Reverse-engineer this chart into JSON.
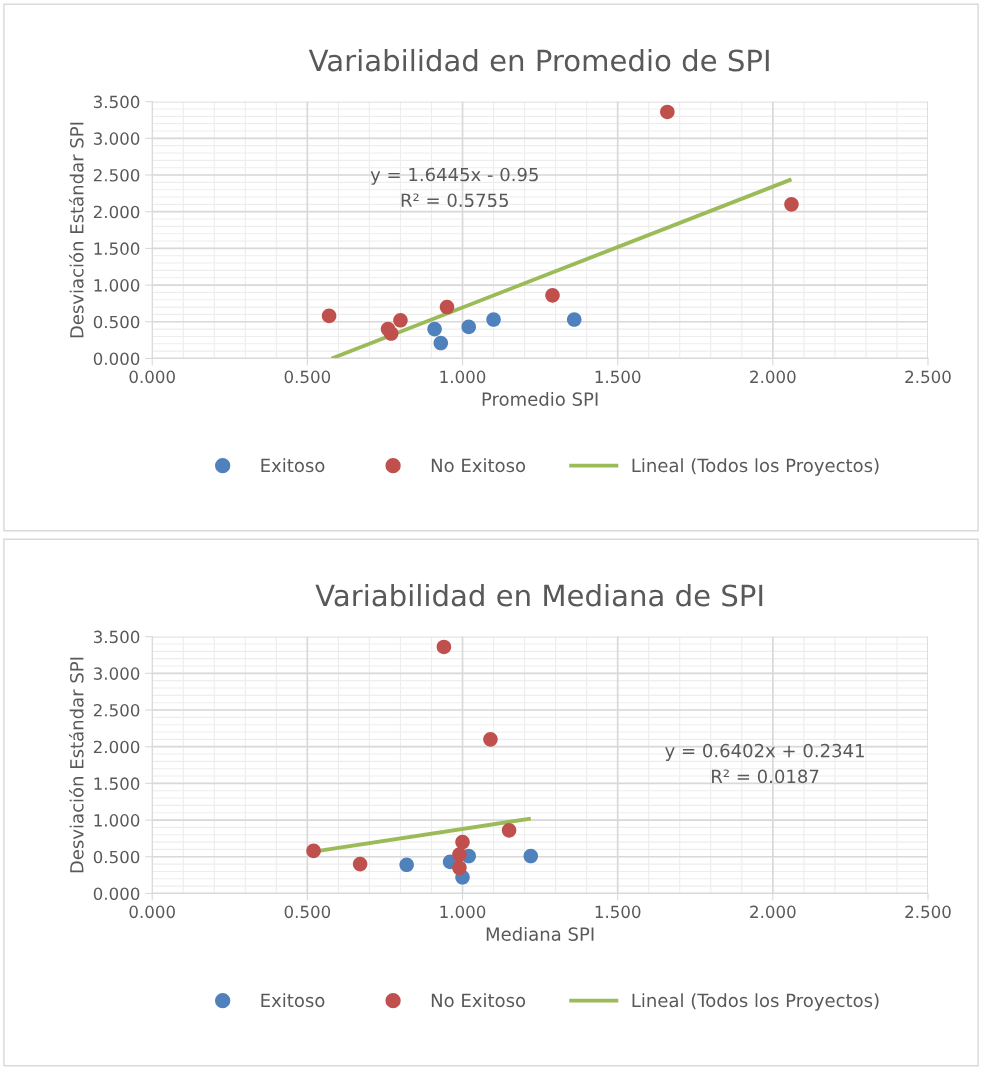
{
  "chart_data": [
    {
      "type": "scatter",
      "title": "Variabilidad en Promedio de SPI",
      "xlabel": "Promedio SPI",
      "ylabel": "Desviación Estándar SPI",
      "xlim": [
        0,
        2.5
      ],
      "xticks": [
        {
          "value": 0,
          "label": "0.000"
        },
        {
          "value": 0.5,
          "label": "0.500"
        },
        {
          "value": 1,
          "label": "1.000"
        },
        {
          "value": 1.5,
          "label": "1.500"
        },
        {
          "value": 2,
          "label": "2.000"
        },
        {
          "value": 2.5,
          "label": "2.500"
        }
      ],
      "ylim": [
        0,
        3.5
      ],
      "yticks": [
        {
          "value": 0,
          "label": "0.000"
        },
        {
          "value": 0.5,
          "label": "0.500"
        },
        {
          "value": 1,
          "label": "1.000"
        },
        {
          "value": 1.5,
          "label": "1.500"
        },
        {
          "value": 2,
          "label": "2.000"
        },
        {
          "value": 2.5,
          "label": "2.500"
        },
        {
          "value": 3,
          "label": "3.000"
        },
        {
          "value": 3.5,
          "label": "3.500"
        }
      ],
      "grid": true,
      "legend": "bottom",
      "annotations": [
        "y = 1.6445x - 0.95\nR² = 0.5755"
      ],
      "series": [
        {
          "name": "Exitoso",
          "color": "#4f81bd",
          "marker": "circle",
          "x": [
            0.91,
            0.93,
            1.02,
            1.1,
            1.36
          ],
          "values": [
            0.4,
            0.21,
            0.43,
            0.53,
            0.53
          ]
        },
        {
          "name": "No Exitoso",
          "color": "#c0504d",
          "marker": "circle",
          "x": [
            0.57,
            0.76,
            0.77,
            0.8,
            0.95,
            1.29,
            1.66,
            2.06
          ],
          "values": [
            0.58,
            0.4,
            0.34,
            0.52,
            0.7,
            0.86,
            3.36,
            2.1
          ]
        },
        {
          "name": "Lineal (Todos los Proyectos)",
          "type": "line",
          "color": "#9bbb59",
          "x": [
            0.578,
            2.06
          ],
          "values": [
            0.0,
            2.44
          ]
        }
      ]
    },
    {
      "type": "scatter",
      "title": "Variabilidad en Mediana de SPI",
      "xlabel": "Mediana SPI",
      "ylabel": "Desviación Estándar SPI",
      "xlim": [
        0,
        2.5
      ],
      "xticks": [
        {
          "value": 0,
          "label": "0.000"
        },
        {
          "value": 0.5,
          "label": "0.500"
        },
        {
          "value": 1,
          "label": "1.000"
        },
        {
          "value": 1.5,
          "label": "1.500"
        },
        {
          "value": 2,
          "label": "2.000"
        },
        {
          "value": 2.5,
          "label": "2.500"
        }
      ],
      "ylim": [
        0,
        3.5
      ],
      "yticks": [
        {
          "value": 0,
          "label": "0.000"
        },
        {
          "value": 0.5,
          "label": "0.500"
        },
        {
          "value": 1,
          "label": "1.000"
        },
        {
          "value": 1.5,
          "label": "1.500"
        },
        {
          "value": 2,
          "label": "2.000"
        },
        {
          "value": 2.5,
          "label": "2.500"
        },
        {
          "value": 3,
          "label": "3.000"
        },
        {
          "value": 3.5,
          "label": "3.500"
        }
      ],
      "grid": true,
      "legend": "bottom",
      "annotations": [
        "y = 0.6402x + 0.2341\nR² = 0.0187"
      ],
      "series": [
        {
          "name": "Exitoso",
          "color": "#4f81bd",
          "marker": "circle",
          "x": [
            0.82,
            0.96,
            1.0,
            1.02,
            1.22
          ],
          "values": [
            0.39,
            0.43,
            0.22,
            0.51,
            0.51
          ]
        },
        {
          "name": "No Exitoso",
          "color": "#c0504d",
          "marker": "circle",
          "x": [
            0.52,
            0.67,
            0.94,
            0.99,
            0.99,
            1.0,
            1.09,
            1.15
          ],
          "values": [
            0.58,
            0.4,
            3.36,
            0.35,
            0.53,
            0.7,
            2.1,
            0.86
          ]
        },
        {
          "name": "Lineal (Todos los Proyectos)",
          "type": "line",
          "color": "#9bbb59",
          "x": [
            0.52,
            1.22
          ],
          "values": [
            0.57,
            1.02
          ]
        }
      ]
    }
  ]
}
